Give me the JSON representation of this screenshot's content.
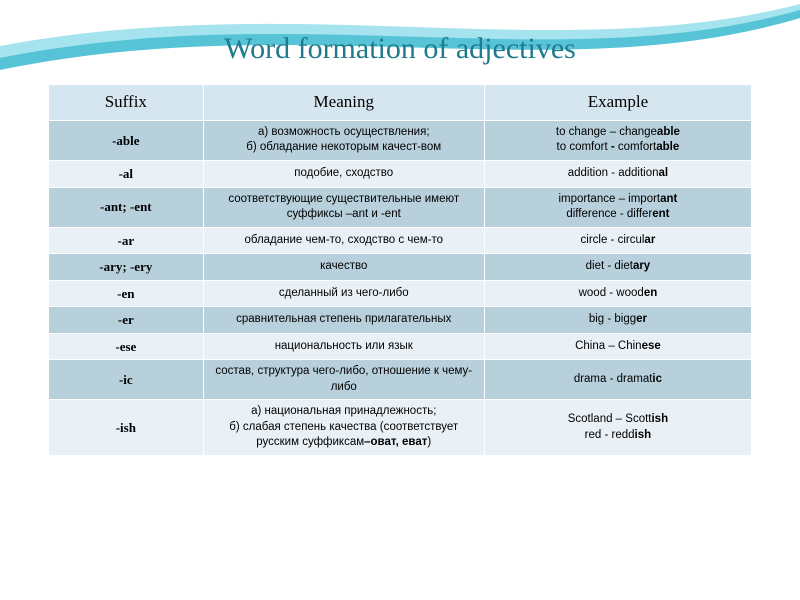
{
  "title": {
    "text": "Word formation of adjectives",
    "color": "#1f7a8c",
    "fontsize": 30
  },
  "swoosh": {
    "outer": "#56c4d6",
    "mid": "#a5e3ee",
    "inner": "#ffffff"
  },
  "table": {
    "header_bg": "#d6e6f0",
    "row_bg_a": "#b8d0dc",
    "row_bg_b": "#eaf1f6",
    "border_color": "#ffffff",
    "suffix_fontsize": 13,
    "suffix_font": "Georgia, serif",
    "body_fontsize": 11.5,
    "columns": [
      "Suffix",
      "Meaning",
      "Example"
    ],
    "rows": [
      {
        "suffix": "-able",
        "meaning": "а) возможность осуществления;<br>б) обладание некоторым качест-вом",
        "example": "to change – change<b>able</b><br>to comfort <b>-</b> comfort<b>able</b>"
      },
      {
        "suffix": "-al",
        "meaning": "подобие, сходство",
        "example": "addition - addition<b>al</b>"
      },
      {
        "suffix": "-ant; -ent",
        "meaning": "соответствующие существительные имеют суффиксы –ant и -ent",
        "example": "importance – import<b>ant</b><br>difference - differ<b>ent</b>"
      },
      {
        "suffix": "-ar",
        "meaning": "обладание чем-то, сходство с чем-то",
        "example": "circle - circul<b>ar</b>"
      },
      {
        "suffix": "-ary; -ery",
        "meaning": "качество",
        "example": "diet - diet<b>ary</b>"
      },
      {
        "suffix": "-en",
        "meaning": "сделанный из чего-либо",
        "example": "wood - wood<b>en</b>"
      },
      {
        "suffix": "-er",
        "meaning": "сравнительная степень прилагательных",
        "example": "big - bigg<b>er</b>"
      },
      {
        "suffix": "-ese",
        "meaning": "национальность или язык",
        "example": "China – Chin<b>ese</b>"
      },
      {
        "suffix": "-ic",
        "meaning": "состав, структура чего-либо, отношение к чему-либо",
        "example": "drama - dramat<b>ic</b>"
      },
      {
        "suffix": "-ish",
        "meaning": "а) национальная принадлежность;<br>б) слабая степень качества (соответствует русским суффиксам<b>–оват, еват</b>)",
        "example": "Scotland – Scott<b>ish</b><br>red - redd<b>ish</b>"
      }
    ]
  }
}
